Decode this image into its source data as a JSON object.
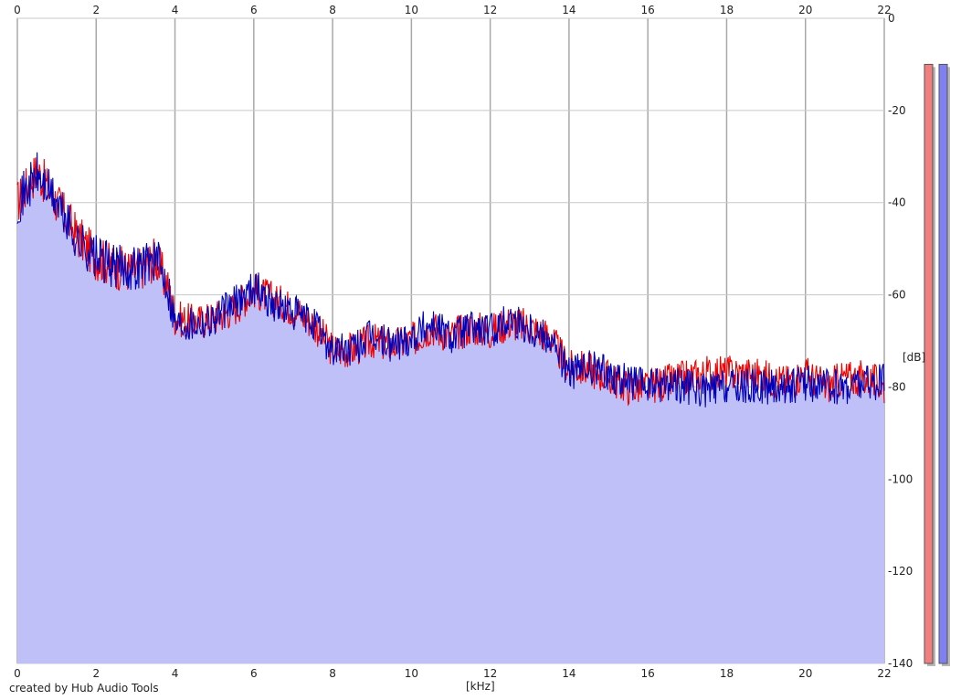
{
  "chart_data": {
    "type": "area",
    "xlabel": "[kHz]",
    "ylabel": "[dB]",
    "xlim": [
      0,
      22
    ],
    "ylim": [
      -140,
      0
    ],
    "x_ticks": [
      "0",
      "2",
      "4",
      "6",
      "8",
      "10",
      "12",
      "14",
      "16",
      "18",
      "20",
      "22"
    ],
    "y_ticks": [
      "0",
      "-20",
      "-40",
      "-60",
      "-80",
      "-100",
      "-120",
      "-140"
    ],
    "grid": true,
    "series": [
      {
        "color": "#ee0000",
        "x": [
          0,
          0.5,
          1,
          1.5,
          2,
          2.5,
          3,
          3.5,
          3.8,
          4,
          4.5,
          5,
          5.5,
          6,
          6.5,
          7,
          7.5,
          8,
          8.5,
          9,
          9.5,
          10,
          10.5,
          11,
          11.5,
          12,
          12.5,
          13,
          13.5,
          14,
          14.5,
          15,
          15.5,
          16,
          16.5,
          17,
          17.5,
          18,
          18.5,
          19,
          19.5,
          20,
          20.5,
          21,
          21.5,
          22
        ],
        "y": [
          -40,
          -33,
          -40,
          -47,
          -52,
          -54,
          -55,
          -52,
          -58,
          -65,
          -66,
          -65,
          -63,
          -59,
          -61,
          -63,
          -66,
          -72,
          -72,
          -70,
          -71,
          -70,
          -67,
          -69,
          -67,
          -68,
          -66,
          -67,
          -69,
          -76,
          -76,
          -78,
          -80,
          -80,
          -79,
          -78,
          -77,
          -77,
          -77,
          -78,
          -79,
          -77,
          -80,
          -78,
          -78,
          -80
        ]
      },
      {
        "color": "#0000bb",
        "x": [
          0,
          0.5,
          1,
          1.5,
          2,
          2.5,
          3,
          3.5,
          3.8,
          4,
          4.5,
          5,
          5.5,
          6,
          6.5,
          7,
          7.5,
          8,
          8.5,
          9,
          9.5,
          10,
          10.5,
          11,
          11.5,
          12,
          12.5,
          13,
          13.5,
          14,
          14.5,
          15,
          15.5,
          16,
          16.5,
          17,
          17.5,
          18,
          18.5,
          19,
          19.5,
          20,
          20.5,
          21,
          21.5,
          22
        ],
        "y": [
          -40,
          -34,
          -40,
          -48,
          -52,
          -54,
          -54,
          -52,
          -57,
          -66,
          -66,
          -65,
          -62,
          -58,
          -62,
          -64,
          -66,
          -72,
          -72,
          -69,
          -71,
          -69,
          -66,
          -69,
          -67,
          -68,
          -65,
          -67,
          -69,
          -77,
          -76,
          -77,
          -79,
          -80,
          -79,
          -80,
          -81,
          -80,
          -80,
          -80,
          -80,
          -79,
          -80,
          -80,
          -79,
          -79
        ]
      }
    ],
    "fill_color": "#c0c0f8",
    "meters": [
      {
        "color": "#f08080",
        "level_db": -10
      },
      {
        "color": "#8080f0",
        "level_db": -10
      }
    ]
  },
  "footer": "created by Hub Audio Tools"
}
